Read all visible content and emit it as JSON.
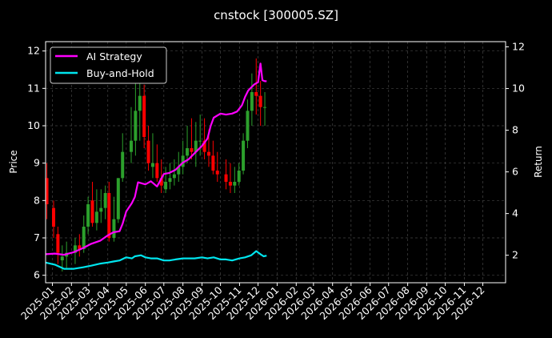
{
  "chart_data": {
    "type": "line",
    "title": "cnstock [300005.SZ]",
    "ylabel_left": "Price",
    "ylabel_right": "Return",
    "xlabel": "",
    "grid": true,
    "legend_position": "top-left",
    "xlim": [
      "2024-12-21",
      "2027-01-07"
    ],
    "ylim_left": [
      5.8,
      12.25
    ],
    "ylim_right": [
      0.68,
      12.25
    ],
    "x_ticks": [
      "2025-01",
      "2025-02",
      "2025-03",
      "2025-04",
      "2025-05",
      "2025-06",
      "2025-07",
      "2025-08",
      "2025-09",
      "2025-10",
      "2025-11",
      "2025-12",
      "2026-01",
      "2026-02",
      "2026-03",
      "2026-04",
      "2026-05",
      "2026-06",
      "2026-07",
      "2026-08",
      "2026-09",
      "2026-10",
      "2026-11",
      "2026-12"
    ],
    "y_ticks_left": [
      6,
      7,
      8,
      9,
      10,
      11,
      12
    ],
    "y_ticks_right": [
      2,
      4,
      6,
      8,
      10,
      12
    ],
    "colors": {
      "up": "#2ca02c",
      "down": "#ff0000",
      "ai": "#ff00ff",
      "bah": "#00e5ee",
      "grid": "#444444"
    },
    "price_candles": {
      "axis": "left",
      "x": [
        "2024-12-23",
        "2025-01-03",
        "2025-01-10",
        "2025-01-17",
        "2025-01-24",
        "2025-02-07",
        "2025-02-14",
        "2025-02-21",
        "2025-02-28",
        "2025-03-07",
        "2025-03-14",
        "2025-03-21",
        "2025-03-28",
        "2025-04-03",
        "2025-04-11",
        "2025-04-18",
        "2025-04-25",
        "2025-05-09",
        "2025-05-16",
        "2025-05-23",
        "2025-05-30",
        "2025-06-06",
        "2025-06-13",
        "2025-06-20",
        "2025-06-27",
        "2025-07-04",
        "2025-07-11",
        "2025-07-18",
        "2025-07-25",
        "2025-08-01",
        "2025-08-08",
        "2025-08-15",
        "2025-08-22",
        "2025-08-29",
        "2025-09-05",
        "2025-09-12",
        "2025-09-19",
        "2025-09-26",
        "2025-10-10",
        "2025-10-17",
        "2025-10-24",
        "2025-10-31",
        "2025-11-07",
        "2025-11-14",
        "2025-11-21",
        "2025-11-28",
        "2025-12-05",
        "2025-12-12"
      ],
      "open": [
        8.6,
        7.8,
        7.1,
        6.4,
        6.5,
        6.6,
        6.8,
        6.7,
        7.3,
        8.0,
        7.4,
        7.7,
        7.8,
        8.2,
        7.0,
        7.5,
        8.6,
        9.3,
        9.6,
        10.4,
        10.8,
        9.6,
        8.9,
        9.0,
        8.6,
        8.3,
        8.5,
        8.6,
        8.7,
        8.9,
        9.2,
        9.4,
        9.3,
        9.6,
        9.6,
        9.3,
        9.2,
        8.8,
        8.7,
        8.5,
        8.4,
        8.5,
        8.8,
        9.6,
        10.4,
        10.9,
        10.8,
        10.5
      ],
      "high": [
        9.0,
        8.0,
        7.3,
        6.8,
        6.9,
        7.0,
        7.1,
        7.6,
        8.1,
        8.5,
        8.3,
        8.3,
        8.4,
        8.5,
        8.1,
        8.6,
        9.8,
        10.5,
        11.3,
        11.3,
        11.1,
        10.0,
        9.8,
        9.5,
        9.1,
        8.9,
        9.0,
        9.1,
        9.3,
        9.6,
        10.0,
        10.2,
        10.1,
        10.3,
        10.2,
        9.9,
        9.6,
        9.3,
        9.1,
        9.0,
        8.9,
        9.0,
        9.8,
        10.7,
        11.4,
        11.8,
        11.2,
        10.9
      ],
      "low": [
        7.5,
        7.0,
        6.3,
        6.1,
        6.2,
        6.3,
        6.5,
        6.6,
        7.1,
        7.3,
        7.2,
        7.4,
        7.5,
        6.9,
        6.9,
        7.4,
        8.5,
        9.0,
        9.2,
        9.6,
        9.4,
        8.8,
        8.6,
        8.5,
        8.2,
        8.2,
        8.3,
        8.4,
        8.5,
        8.7,
        9.0,
        9.1,
        8.9,
        9.2,
        9.1,
        8.9,
        8.7,
        8.5,
        8.3,
        8.2,
        8.2,
        8.4,
        8.7,
        9.4,
        10.0,
        10.3,
        10.0,
        10.0
      ],
      "close": [
        7.9,
        7.3,
        6.6,
        6.5,
        6.6,
        6.8,
        6.7,
        7.3,
        7.9,
        7.4,
        7.7,
        7.8,
        8.2,
        7.0,
        7.5,
        8.6,
        9.3,
        9.6,
        10.4,
        10.8,
        9.7,
        9.0,
        9.0,
        8.6,
        8.4,
        8.5,
        8.6,
        8.7,
        8.9,
        9.2,
        9.4,
        9.3,
        9.6,
        9.6,
        9.3,
        9.2,
        8.8,
        8.7,
        8.5,
        8.4,
        8.5,
        8.8,
        9.6,
        10.4,
        10.9,
        10.8,
        10.5,
        10.5
      ]
    },
    "series": [
      {
        "name": "AI Strategy",
        "axis": "right",
        "x": [
          "2024-12-21",
          "2025-01-05",
          "2025-01-20",
          "2025-02-05",
          "2025-02-20",
          "2025-03-05",
          "2025-03-20",
          "2025-04-01",
          "2025-04-10",
          "2025-04-20",
          "2025-04-25",
          "2025-05-01",
          "2025-05-10",
          "2025-05-15",
          "2025-05-20",
          "2025-06-01",
          "2025-06-10",
          "2025-06-20",
          "2025-07-01",
          "2025-07-10",
          "2025-07-20",
          "2025-08-01",
          "2025-08-10",
          "2025-08-20",
          "2025-09-01",
          "2025-09-10",
          "2025-09-15",
          "2025-09-20",
          "2025-10-01",
          "2025-10-10",
          "2025-10-20",
          "2025-10-28",
          "2025-11-05",
          "2025-11-10",
          "2025-11-15",
          "2025-11-25",
          "2025-12-01",
          "2025-12-05",
          "2025-12-08",
          "2025-12-12",
          "2025-12-15"
        ],
        "values": [
          2.05,
          2.08,
          2.02,
          2.15,
          2.35,
          2.55,
          2.7,
          2.95,
          3.1,
          3.15,
          3.5,
          4.1,
          4.5,
          4.8,
          5.5,
          5.4,
          5.55,
          5.3,
          5.9,
          5.95,
          6.1,
          6.45,
          6.6,
          6.9,
          7.25,
          7.6,
          8.2,
          8.6,
          8.8,
          8.75,
          8.8,
          8.9,
          9.2,
          9.6,
          9.9,
          10.2,
          10.3,
          11.2,
          10.4,
          10.35,
          10.35
        ]
      },
      {
        "name": "Buy-and-Hold",
        "axis": "right",
        "x": [
          "2024-12-21",
          "2025-01-05",
          "2025-01-20",
          "2025-02-05",
          "2025-02-20",
          "2025-03-05",
          "2025-03-20",
          "2025-04-01",
          "2025-04-10",
          "2025-04-20",
          "2025-05-01",
          "2025-05-10",
          "2025-05-15",
          "2025-05-25",
          "2025-06-01",
          "2025-06-10",
          "2025-06-20",
          "2025-07-01",
          "2025-07-10",
          "2025-07-20",
          "2025-08-01",
          "2025-08-10",
          "2025-08-20",
          "2025-09-01",
          "2025-09-10",
          "2025-09-20",
          "2025-10-01",
          "2025-10-10",
          "2025-10-20",
          "2025-11-01",
          "2025-11-10",
          "2025-11-20",
          "2025-11-28",
          "2025-12-05",
          "2025-12-10",
          "2025-12-15"
        ],
        "values": [
          1.65,
          1.55,
          1.35,
          1.35,
          1.42,
          1.5,
          1.6,
          1.65,
          1.7,
          1.75,
          1.9,
          1.85,
          1.95,
          2.0,
          1.9,
          1.85,
          1.85,
          1.75,
          1.75,
          1.8,
          1.85,
          1.85,
          1.85,
          1.9,
          1.85,
          1.9,
          1.8,
          1.8,
          1.75,
          1.85,
          1.9,
          2.0,
          2.2,
          2.05,
          1.95,
          1.98
        ]
      }
    ]
  }
}
